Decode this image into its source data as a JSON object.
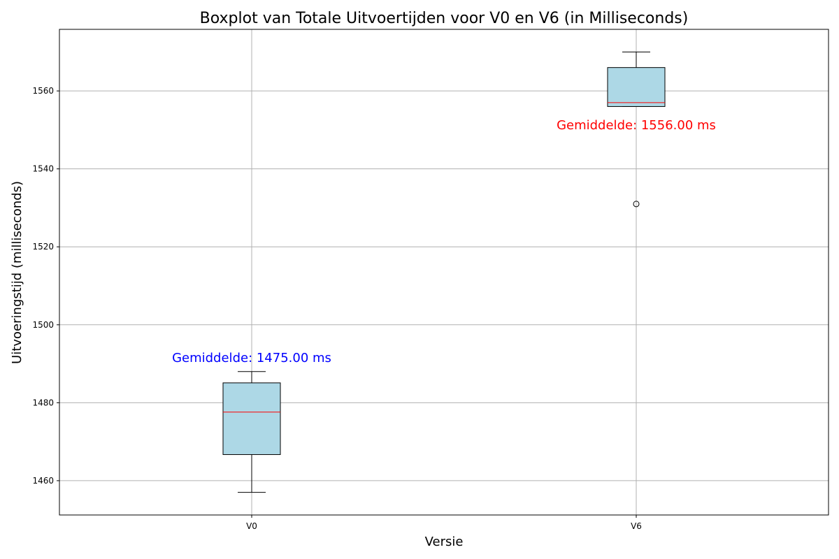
{
  "chart_data": {
    "type": "boxplot",
    "title": "Boxplot van Totale Uitvoertijden voor V0 en V6 (in Milliseconds)",
    "xlabel": "Versie",
    "ylabel": "Uitvoeringstijd (milliseconds)",
    "categories": [
      "V0",
      "V6"
    ],
    "ylim": [
      1451.2,
      1575.8
    ],
    "yticks": [
      1460,
      1480,
      1500,
      1520,
      1540,
      1560
    ],
    "grid": true,
    "box_color": "#add8e6",
    "median_color": "#ff0000",
    "boxes": [
      {
        "label": "V0",
        "whisker_low": 1457,
        "q1": 1466.7,
        "median": 1477.6,
        "q3": 1485.1,
        "whisker_high": 1488,
        "outliers": []
      },
      {
        "label": "V6",
        "whisker_low": 1556,
        "q1": 1556,
        "median": 1557,
        "q3": 1566,
        "whisker_high": 1570,
        "outliers": [
          1531
        ]
      }
    ],
    "annotations": [
      {
        "category": "V0",
        "text": "Gemiddelde: 1475.00 ms",
        "color": "#0000ff",
        "y": 1490.5
      },
      {
        "category": "V6",
        "text": "Gemiddelde: 1556.00 ms",
        "color": "#ff0000",
        "y": 1550.2
      }
    ]
  }
}
